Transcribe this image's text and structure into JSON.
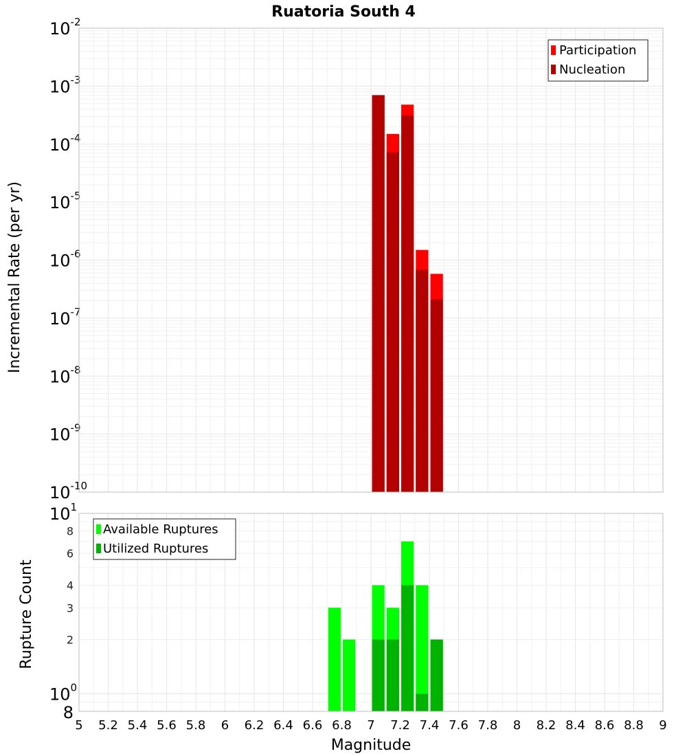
{
  "chart_data": [
    {
      "type": "bar",
      "title": "Ruatoria South 4",
      "ylabel": "Incremental Rate (per yr)",
      "xlabel": "",
      "xlim": [
        5,
        9
      ],
      "ylim": [
        1e-10,
        0.01
      ],
      "yscale": "log",
      "grid": true,
      "bar_width": 0.1,
      "legend_position": "top-right",
      "y_tick_labels": [
        {
          "base": "10",
          "exp": "-10",
          "value": 1e-10
        },
        {
          "base": "10",
          "exp": "-9",
          "value": 1e-09
        },
        {
          "base": "10",
          "exp": "-8",
          "value": 1e-08
        },
        {
          "base": "10",
          "exp": "-7",
          "value": 1e-07
        },
        {
          "base": "10",
          "exp": "-6",
          "value": 1e-06
        },
        {
          "base": "10",
          "exp": "-5",
          "value": 1e-05
        },
        {
          "base": "10",
          "exp": "-4",
          "value": 0.0001
        },
        {
          "base": "10",
          "exp": "-3",
          "value": 0.001
        },
        {
          "base": "10",
          "exp": "-2",
          "value": 0.01
        }
      ],
      "x": [
        7.05,
        7.15,
        7.25,
        7.35,
        7.45
      ],
      "series": [
        {
          "name": "Participation",
          "color": "#ff0000",
          "values": [
            0.0007,
            0.00015,
            0.00048,
            1.5e-06,
            5.8e-07
          ]
        },
        {
          "name": "Nucleation",
          "color": "#b30000",
          "values": [
            0.0007,
            7.2e-05,
            0.00031,
            6.8e-07,
            2.1e-07
          ]
        }
      ]
    },
    {
      "type": "bar",
      "title": "",
      "ylabel": "Rupture Count",
      "xlabel": "Magnitude",
      "xlim": [
        5,
        9
      ],
      "ylim": [
        0.8,
        10
      ],
      "yscale": "log",
      "grid": true,
      "bar_width": 0.1,
      "legend_position": "top-left",
      "y_tick_labels": [
        {
          "base": "10",
          "exp": "0",
          "value": 1
        },
        {
          "base": "10",
          "exp": "1",
          "value": 10
        }
      ],
      "y_minor_tick_labels": [
        {
          "label": "8",
          "value": 0.8
        },
        {
          "label": "2",
          "value": 2
        },
        {
          "label": "3",
          "value": 3
        },
        {
          "label": "4",
          "value": 4
        },
        {
          "label": "6",
          "value": 6
        },
        {
          "label": "8",
          "value": 8
        }
      ],
      "x_ticks": [
        "5",
        "5.2",
        "5.4",
        "5.6",
        "5.8",
        "6",
        "6.2",
        "6.4",
        "6.6",
        "6.8",
        "7",
        "7.2",
        "7.4",
        "7.6",
        "7.8",
        "8",
        "8.2",
        "8.4",
        "8.6",
        "8.8",
        "9"
      ],
      "x": [
        6.75,
        6.85,
        7.05,
        7.15,
        7.25,
        7.35,
        7.45
      ],
      "series": [
        {
          "name": "Available Ruptures",
          "color": "#00ff00",
          "values": [
            3,
            2,
            4,
            3,
            7,
            4,
            2
          ]
        },
        {
          "name": "Utilized Ruptures",
          "color": "#00b300",
          "values": [
            0,
            0,
            2,
            2,
            4,
            1,
            2
          ]
        }
      ]
    }
  ]
}
